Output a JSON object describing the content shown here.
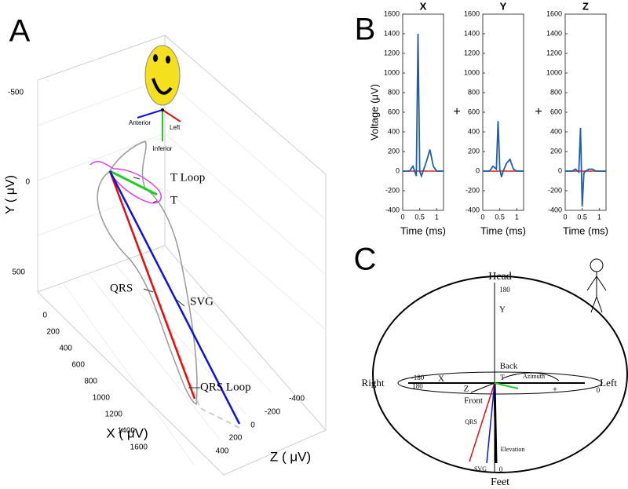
{
  "panel_labels": [
    "A",
    "B",
    "C"
  ],
  "panel_a": {
    "y_label": "Y ( μV)",
    "x_label": "X ( μV)",
    "z_label": "Z ( μV)",
    "y_ticks": [
      -500,
      0,
      500
    ],
    "x_ticks": [
      0,
      200,
      400,
      600,
      800,
      1000,
      1200,
      1400,
      1600
    ],
    "z_ticks": [
      -400,
      -200,
      0,
      200,
      400
    ],
    "annotations": [
      "T Loop",
      "T",
      "QRS",
      "SVG",
      "QRS Loop"
    ],
    "orientation": [
      "Anterior",
      "Left",
      "Inferior"
    ]
  },
  "chart_data": [
    {
      "type": "line",
      "title": "X",
      "ylabel": "Voltage (μV)",
      "xlabel": "Time (ms)",
      "x": [
        0,
        0.1,
        0.2,
        0.3,
        0.4,
        0.45,
        0.5,
        0.55,
        0.6,
        0.7,
        0.8,
        0.9,
        1.0,
        1.2
      ],
      "series": [
        {
          "color": "#1f5fa8",
          "values": [
            0,
            0,
            0,
            50,
            -50,
            1400,
            0,
            -50,
            0,
            100,
            220,
            50,
            0,
            0
          ]
        },
        {
          "color": "#e02020",
          "values": [
            0,
            0,
            0,
            0,
            0,
            0,
            0,
            0,
            0,
            0,
            0,
            0,
            0,
            0
          ]
        }
      ],
      "xlim": [
        0,
        1.2
      ],
      "xticks": [
        0,
        0.5,
        1
      ],
      "ylim": [
        -400,
        1600
      ],
      "yticks": [
        -400,
        -200,
        0,
        200,
        400,
        600,
        800,
        1000,
        1200,
        1400,
        1600
      ]
    },
    {
      "type": "line",
      "title": "Y",
      "xlabel": "Time (ms)",
      "x": [
        0,
        0.1,
        0.2,
        0.3,
        0.4,
        0.45,
        0.5,
        0.55,
        0.6,
        0.7,
        0.8,
        0.9,
        1.0,
        1.2
      ],
      "series": [
        {
          "color": "#1f5fa8",
          "values": [
            0,
            0,
            0,
            50,
            20,
            510,
            20,
            -60,
            0,
            80,
            120,
            20,
            0,
            0
          ]
        },
        {
          "color": "#e02020",
          "values": [
            0,
            0,
            0,
            0,
            0,
            0,
            0,
            0,
            0,
            0,
            0,
            0,
            0,
            0
          ]
        }
      ],
      "xlim": [
        0,
        1.2
      ],
      "xticks": [
        0,
        0.5,
        1
      ],
      "ylim": [
        -400,
        1600
      ],
      "yticks": [
        -400,
        -200,
        0,
        200,
        400,
        600,
        800,
        1000,
        1200,
        1400,
        1600
      ]
    },
    {
      "type": "line",
      "title": "Z",
      "xlabel": "Time (ms)",
      "x": [
        0,
        0.1,
        0.2,
        0.3,
        0.4,
        0.45,
        0.5,
        0.55,
        0.6,
        0.7,
        0.8,
        0.9,
        1.0,
        1.2
      ],
      "series": [
        {
          "color": "#1f5fa8",
          "values": [
            0,
            0,
            0,
            20,
            -10,
            440,
            -360,
            -20,
            0,
            20,
            20,
            0,
            0,
            0
          ]
        },
        {
          "color": "#e02020",
          "values": [
            0,
            0,
            0,
            0,
            0,
            0,
            0,
            0,
            0,
            0,
            0,
            0,
            0,
            0
          ]
        }
      ],
      "xlim": [
        0,
        1.2
      ],
      "xticks": [
        0,
        0.5,
        1
      ],
      "ylim": [
        -400,
        1600
      ],
      "yticks": [
        -400,
        -200,
        0,
        200,
        400,
        600,
        800,
        1000,
        1200,
        1400,
        1600
      ]
    }
  ],
  "operators": [
    "+",
    "+"
  ],
  "panel_c": {
    "labels": [
      "Head",
      180,
      "Y",
      "Back",
      "Right",
      "Left",
      -180,
      180,
      "X",
      0,
      "Z",
      "Front",
      "T",
      "Azimuth",
      "+",
      "QRS",
      "SVG",
      "Elevation",
      0,
      "Feet"
    ]
  }
}
